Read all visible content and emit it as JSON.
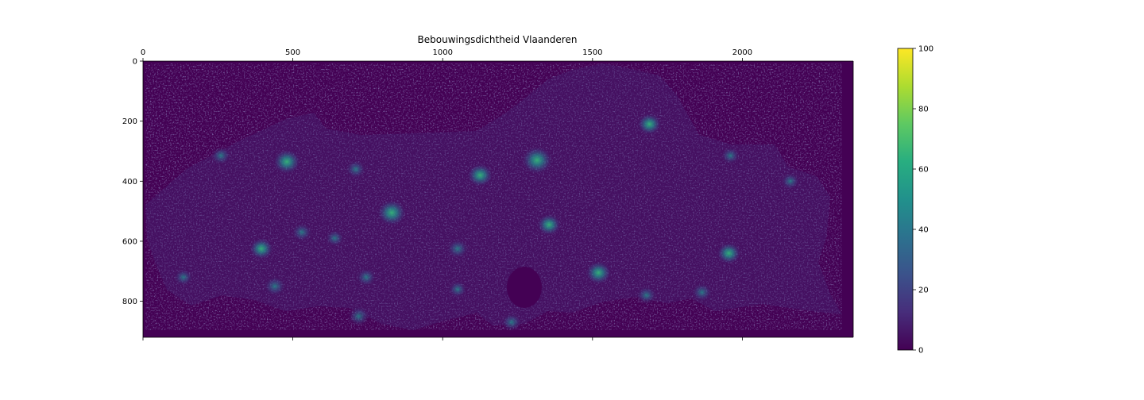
{
  "chart_data": {
    "type": "heatmap",
    "title": "Bebouwingsdichtheid Vlaanderen",
    "xlabel": "",
    "ylabel": "",
    "x_axis_position": "top",
    "xlim": [
      0,
      2370
    ],
    "ylim": [
      920,
      0
    ],
    "x_ticks": [
      0,
      500,
      1000,
      1500,
      2000
    ],
    "y_ticks": [
      0,
      200,
      400,
      600,
      800
    ],
    "colormap": "viridis",
    "color_range": [
      0,
      100
    ],
    "colorbar_ticks": [
      0,
      20,
      40,
      60,
      80,
      100
    ],
    "background_value": 0,
    "hotspots": [
      {
        "x": 480,
        "y": 335,
        "v": 55
      },
      {
        "x": 830,
        "y": 505,
        "v": 60
      },
      {
        "x": 1125,
        "y": 380,
        "v": 50
      },
      {
        "x": 1315,
        "y": 330,
        "v": 65
      },
      {
        "x": 1355,
        "y": 545,
        "v": 45
      },
      {
        "x": 1520,
        "y": 705,
        "v": 50
      },
      {
        "x": 1690,
        "y": 210,
        "v": 45
      },
      {
        "x": 1955,
        "y": 640,
        "v": 45
      },
      {
        "x": 1865,
        "y": 770,
        "v": 35
      },
      {
        "x": 395,
        "y": 625,
        "v": 45
      },
      {
        "x": 530,
        "y": 570,
        "v": 35
      },
      {
        "x": 745,
        "y": 720,
        "v": 35
      },
      {
        "x": 1050,
        "y": 625,
        "v": 40
      },
      {
        "x": 260,
        "y": 315,
        "v": 35
      },
      {
        "x": 710,
        "y": 360,
        "v": 35
      },
      {
        "x": 1230,
        "y": 870,
        "v": 35
      },
      {
        "x": 720,
        "y": 850,
        "v": 40
      },
      {
        "x": 1050,
        "y": 760,
        "v": 30
      },
      {
        "x": 1680,
        "y": 780,
        "v": 35
      },
      {
        "x": 2160,
        "y": 400,
        "v": 30
      },
      {
        "x": 440,
        "y": 750,
        "v": 40
      },
      {
        "x": 135,
        "y": 720,
        "v": 30
      },
      {
        "x": 640,
        "y": 590,
        "v": 30
      },
      {
        "x": 1960,
        "y": 315,
        "v": 30
      }
    ]
  }
}
